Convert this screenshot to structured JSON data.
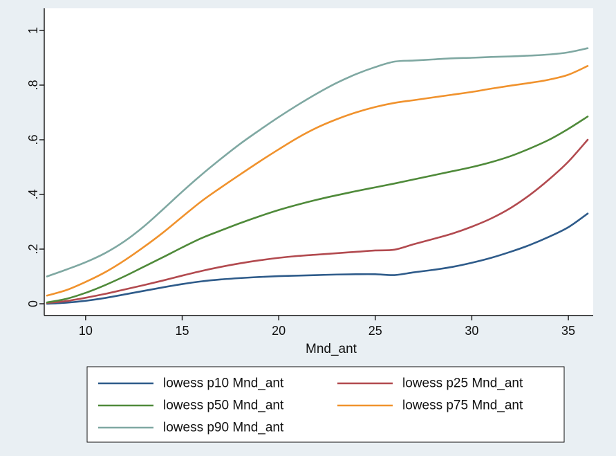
{
  "chart_data": {
    "type": "line",
    "title": "",
    "xlabel": "Mnd_ant",
    "ylabel": "",
    "xlim": [
      8,
      36
    ],
    "ylim": [
      0,
      1
    ],
    "x_ticks": [
      10,
      15,
      20,
      25,
      30,
      35
    ],
    "x_tick_labels": [
      "10",
      "15",
      "20",
      "25",
      "30",
      "35"
    ],
    "y_ticks": [
      0,
      0.2,
      0.4,
      0.6,
      0.8,
      1
    ],
    "y_tick_labels": [
      "0",
      ".2",
      ".4",
      ".6",
      ".8",
      "1"
    ],
    "grid": false,
    "legend_position": "bottom",
    "x": [
      8,
      9,
      10,
      11,
      12,
      13,
      14,
      15,
      16,
      17,
      18,
      19,
      20,
      21,
      22,
      23,
      24,
      25,
      26,
      27,
      28,
      29,
      30,
      31,
      32,
      33,
      34,
      35,
      36
    ],
    "series": [
      {
        "name": "lowess p10 Mnd_ant",
        "color": "#2e5b8a",
        "values": [
          0.0,
          0.004,
          0.011,
          0.021,
          0.034,
          0.047,
          0.06,
          0.072,
          0.082,
          0.089,
          0.094,
          0.098,
          0.101,
          0.103,
          0.105,
          0.107,
          0.108,
          0.108,
          0.105,
          0.115,
          0.124,
          0.135,
          0.15,
          0.168,
          0.19,
          0.215,
          0.245,
          0.28,
          0.33
        ]
      },
      {
        "name": "lowess p25 Mnd_ant",
        "color": "#b24a4f",
        "values": [
          0.003,
          0.01,
          0.022,
          0.036,
          0.052,
          0.068,
          0.085,
          0.103,
          0.12,
          0.135,
          0.148,
          0.159,
          0.168,
          0.175,
          0.18,
          0.185,
          0.19,
          0.195,
          0.198,
          0.218,
          0.237,
          0.257,
          0.282,
          0.312,
          0.35,
          0.398,
          0.455,
          0.52,
          0.6
        ]
      },
      {
        "name": "lowess p50 Mnd_ant",
        "color": "#4f8a3a",
        "values": [
          0.005,
          0.018,
          0.04,
          0.068,
          0.1,
          0.135,
          0.17,
          0.206,
          0.24,
          0.268,
          0.295,
          0.32,
          0.343,
          0.363,
          0.381,
          0.397,
          0.412,
          0.426,
          0.44,
          0.455,
          0.47,
          0.485,
          0.5,
          0.518,
          0.54,
          0.568,
          0.6,
          0.64,
          0.685
        ]
      },
      {
        "name": "lowess p75 Mnd_ant",
        "color": "#f0922d",
        "values": [
          0.03,
          0.05,
          0.08,
          0.115,
          0.158,
          0.207,
          0.26,
          0.318,
          0.375,
          0.425,
          0.473,
          0.52,
          0.565,
          0.608,
          0.645,
          0.675,
          0.7,
          0.72,
          0.735,
          0.745,
          0.755,
          0.765,
          0.775,
          0.787,
          0.798,
          0.808,
          0.82,
          0.838,
          0.87
        ]
      },
      {
        "name": "lowess p90 Mnd_ant",
        "color": "#7fa8a2",
        "values": [
          0.1,
          0.125,
          0.152,
          0.185,
          0.228,
          0.282,
          0.345,
          0.41,
          0.472,
          0.53,
          0.585,
          0.635,
          0.683,
          0.728,
          0.77,
          0.808,
          0.84,
          0.866,
          0.886,
          0.89,
          0.894,
          0.898,
          0.9,
          0.903,
          0.905,
          0.908,
          0.912,
          0.92,
          0.935
        ]
      }
    ]
  }
}
